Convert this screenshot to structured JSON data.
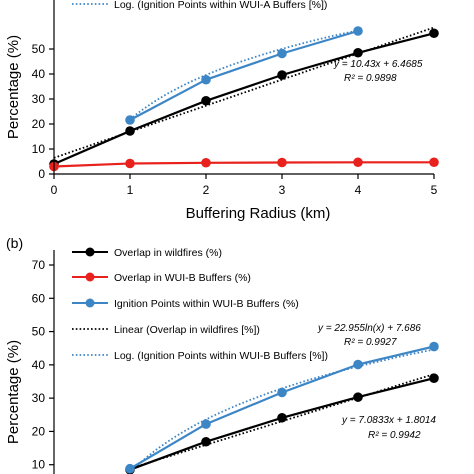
{
  "chart_data": [
    {
      "type": "line",
      "panel_label": "",
      "xlabel": "Buffering Radius (km)",
      "ylabel": "Percentage (%)",
      "xlim": [
        0,
        5
      ],
      "ylim": [
        0,
        60
      ],
      "x_ticks": [
        "0",
        "1",
        "2",
        "3",
        "4",
        "5"
      ],
      "y_ticks": [
        "0",
        "10",
        "20",
        "30",
        "40",
        "50"
      ],
      "grid": false,
      "legend_position": "top-left",
      "legend": [
        {
          "label": "Log. (Ignition Points within WUI-A Buffers [%])",
          "color": "#3d86c6",
          "style": "dotted"
        }
      ],
      "series": [
        {
          "color": "#000000",
          "x": [
            0,
            1,
            2,
            3,
            4,
            5
          ],
          "y": [
            4,
            17.2,
            29.3,
            39.6,
            48.5,
            56.3
          ]
        },
        {
          "color": "#e8211d",
          "x": [
            0,
            1,
            2,
            3,
            4,
            5
          ],
          "y": [
            3,
            4.2,
            4.5,
            4.6,
            4.7,
            4.7
          ]
        },
        {
          "color": "#3d86c6",
          "x": [
            1,
            2,
            3,
            4
          ],
          "y": [
            21.6,
            37.7,
            48.2,
            57.2
          ]
        }
      ],
      "trendlines": [
        {
          "type": "linear",
          "color": "#000000",
          "slope": 10.43,
          "intercept": 6.4685,
          "x_range": [
            0,
            5
          ]
        },
        {
          "type": "log",
          "color": "#3d86c6",
          "a": 25.7,
          "b": 21.8,
          "x_range": [
            1,
            4
          ]
        }
      ],
      "annotations": [
        {
          "line1": "y = 10.43x + 6.4685",
          "line2": "R² = 0.9898"
        }
      ]
    },
    {
      "type": "line",
      "panel_label": "(b)",
      "xlabel": "",
      "ylabel": "Percentage (%)",
      "xlim": [
        0,
        5
      ],
      "ylim": [
        0,
        70
      ],
      "x_ticks": [],
      "y_ticks": [
        "10",
        "20",
        "30",
        "40",
        "50",
        "60",
        "70"
      ],
      "grid": false,
      "legend_position": "top-left",
      "legend": [
        {
          "label": "Overlap in wildfires (%)",
          "color": "#000000",
          "style": "marker"
        },
        {
          "label": "Overlap in WUI-B Buffers (%)",
          "color": "#e8211d",
          "style": "marker"
        },
        {
          "label": "Ignition Points within WUI-B Buffers (%)",
          "color": "#3d86c6",
          "style": "marker"
        },
        {
          "label": "Linear (Overlap in wildfires [%])",
          "color": "#000000",
          "style": "dotted"
        },
        {
          "label": "Log. (Ignition Points within WUI-B Buffers [%])",
          "color": "#3d86c6",
          "style": "dotted"
        }
      ],
      "series": [
        {
          "name": "Overlap in wildfires (%)",
          "color": "#000000",
          "x": [
            1,
            2,
            3,
            4,
            5
          ],
          "y": [
            8.5,
            16.9,
            24.1,
            30.3,
            36
          ]
        },
        {
          "name": "Ignition Points within WUI-B Buffers (%)",
          "color": "#3d86c6",
          "x": [
            1,
            2,
            3,
            4,
            5
          ],
          "y": [
            8.8,
            22.2,
            31.7,
            40.1,
            45.5
          ]
        }
      ],
      "trendlines": [
        {
          "type": "linear",
          "color": "#000000",
          "slope": 7.0833,
          "intercept": 1.8014,
          "x_range": [
            1,
            5
          ]
        },
        {
          "type": "log",
          "color": "#3d86c6",
          "a": 22.955,
          "b": 7.686,
          "x_range": [
            1,
            5
          ]
        }
      ],
      "annotations": [
        {
          "line1": "y = 22.955ln(x) + 7.686",
          "line2": "R² = 0.9927"
        },
        {
          "line1": "y = 7.0833x + 1.8014",
          "line2": "R² = 0.9942"
        }
      ]
    }
  ]
}
